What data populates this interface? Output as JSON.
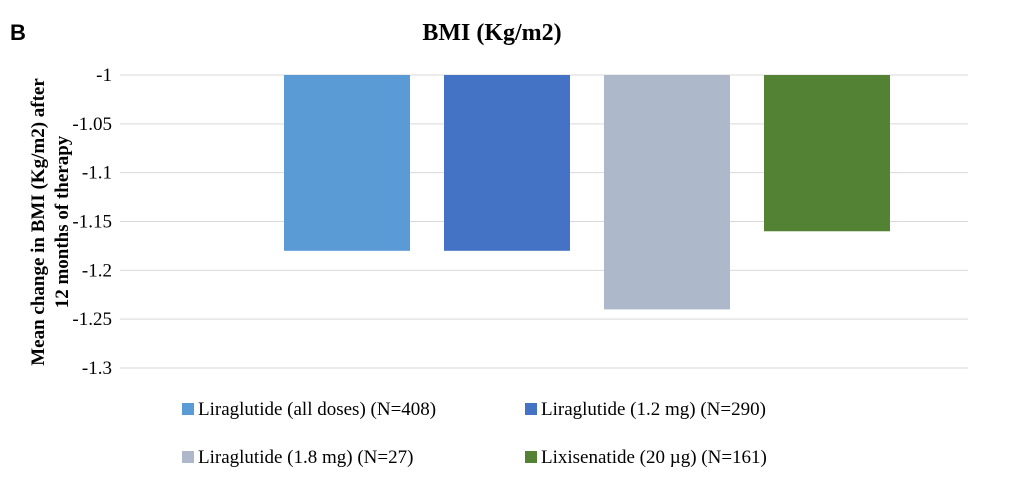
{
  "panel_letter": "B",
  "chart_data": {
    "type": "bar",
    "title": "BMI (Kg/m2)",
    "ylabel": "Mean change in BMI (Kg/m2) after 12 months of therapy",
    "ylabel_lines": [
      "Mean change in BMI (Kg/m2) after",
      "12 months of therapy"
    ],
    "xlabel": "",
    "ylim": [
      -1.3,
      -1
    ],
    "y_ticks": [
      -1,
      -1.05,
      -1.1,
      -1.15,
      -1.2,
      -1.25,
      -1.3
    ],
    "y_tick_labels": [
      "-1",
      "-1.05",
      "-1.1",
      "-1.15",
      "-1.2",
      "-1.25",
      "-1.3"
    ],
    "grid": true,
    "legend_position": "bottom",
    "series": [
      {
        "name": "Liraglutide (all doses) (N=408)",
        "value": -1.18,
        "color": "#5b9bd5"
      },
      {
        "name": "Liraglutide (1.2 mg) (N=290)",
        "value": -1.18,
        "color": "#4472c4"
      },
      {
        "name": "Liraglutide (1.8 mg) (N=27)",
        "value": -1.24,
        "color": "#adb9ca"
      },
      {
        "name": "Lixisenatide (20 µg) (N=161)",
        "value": -1.16,
        "color": "#548235"
      }
    ]
  }
}
